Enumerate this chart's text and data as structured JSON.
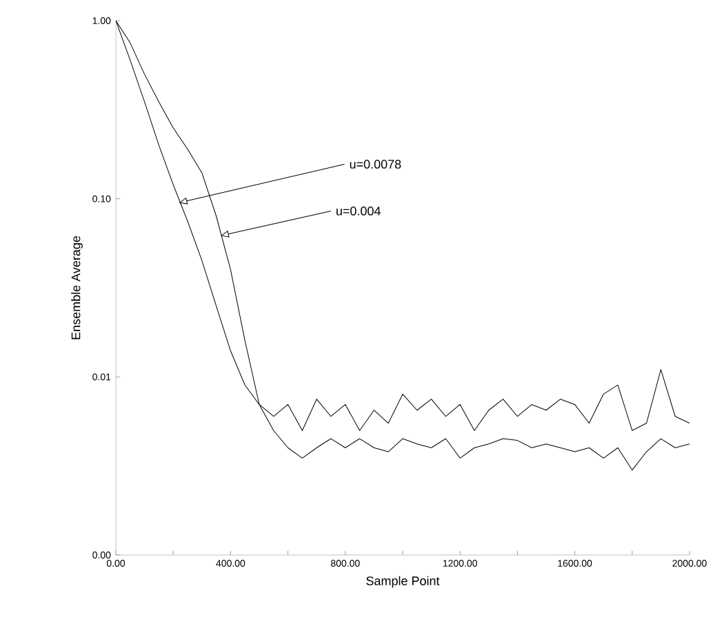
{
  "chart_data": {
    "type": "line",
    "xlabel": "Sample Point",
    "ylabel": "Ensemble Average",
    "log": "y",
    "xlim": [
      0,
      2000
    ],
    "ylim": [
      0.001,
      1
    ],
    "xticks": [
      {
        "value": 0,
        "label": "0.00"
      },
      {
        "value": 200,
        "label": null
      },
      {
        "value": 400,
        "label": "400.00"
      },
      {
        "value": 600,
        "label": null
      },
      {
        "value": 800,
        "label": "800.00"
      },
      {
        "value": 1000,
        "label": null
      },
      {
        "value": 1200,
        "label": "1200.00"
      },
      {
        "value": 1400,
        "label": null
      },
      {
        "value": 1600,
        "label": "1600.00"
      },
      {
        "value": 1800,
        "label": null
      },
      {
        "value": 2000,
        "label": "2000.00"
      }
    ],
    "yticks": [
      {
        "value": 0.001,
        "label": "0.00"
      },
      {
        "value": 0.01,
        "label": "0.01"
      },
      {
        "value": 0.1,
        "label": "0.10"
      },
      {
        "value": 1,
        "label": "1.00"
      }
    ],
    "x": [
      0,
      50,
      100,
      150,
      200,
      250,
      300,
      350,
      400,
      450,
      500,
      550,
      600,
      650,
      700,
      750,
      800,
      850,
      900,
      950,
      1000,
      1050,
      1100,
      1150,
      1200,
      1250,
      1300,
      1350,
      1400,
      1450,
      1500,
      1550,
      1600,
      1650,
      1700,
      1750,
      1800,
      1850,
      1900,
      1950,
      2000
    ],
    "series": [
      {
        "color": "#000000",
        "values": [
          1,
          0.6,
          0.35,
          0.2,
          0.12,
          0.075,
          0.045,
          0.025,
          0.014,
          0.009,
          0.007,
          0.006,
          0.007,
          0.005,
          0.0075,
          0.006,
          0.007,
          0.005,
          0.0065,
          0.0055,
          0.008,
          0.0065,
          0.0075,
          0.006,
          0.007,
          0.005,
          0.0065,
          0.0075,
          0.006,
          0.007,
          0.0065,
          0.0075,
          0.007,
          0.0055,
          0.008,
          0.009,
          0.005,
          0.0055,
          0.011,
          0.006,
          0.0055
        ]
      },
      {
        "color": "#000000",
        "values": [
          1,
          0.75,
          0.5,
          0.35,
          0.25,
          0.19,
          0.14,
          0.08,
          0.04,
          0.016,
          0.007,
          0.005,
          0.004,
          0.0035,
          0.004,
          0.0045,
          0.004,
          0.0045,
          0.004,
          0.0038,
          0.0045,
          0.0042,
          0.004,
          0.0045,
          0.0035,
          0.004,
          0.0042,
          0.0045,
          0.0044,
          0.004,
          0.0042,
          0.004,
          0.0038,
          0.004,
          0.0035,
          0.004,
          0.003,
          0.0038,
          0.0045,
          0.004,
          0.0042
        ]
      }
    ],
    "annotations": [
      {
        "text": "u=0.0078",
        "x": 220,
        "y": 0.095
      },
      {
        "text": "u=0.004",
        "x": 365,
        "y": 0.062
      }
    ]
  }
}
